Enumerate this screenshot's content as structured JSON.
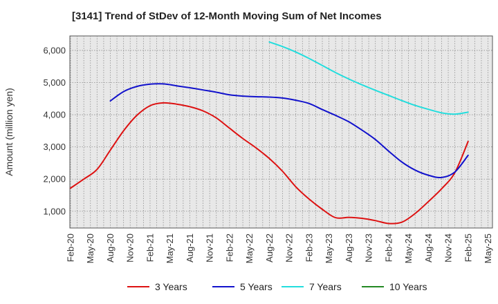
{
  "chart_data": {
    "type": "line",
    "title": "[3141]  Trend of StDev of 12-Month Moving Sum of Net Incomes",
    "ylabel": "Amount (million yen)",
    "xlabel": "",
    "ylim": [
      480,
      6450
    ],
    "yticks": [
      1000,
      2000,
      3000,
      4000,
      5000,
      6000
    ],
    "ytick_labels": [
      "1,000",
      "2,000",
      "3,000",
      "4,000",
      "5,000",
      "6,000"
    ],
    "grid": true,
    "legend_position": "bottom",
    "x_labels": [
      "Feb-20",
      "May-20",
      "Aug-20",
      "Nov-20",
      "Feb-21",
      "May-21",
      "Aug-21",
      "Nov-21",
      "Feb-22",
      "May-22",
      "Aug-22",
      "Nov-22",
      "Feb-23",
      "May-23",
      "Aug-23",
      "Nov-23",
      "Feb-24",
      "May-24",
      "Aug-24",
      "Nov-24",
      "Feb-25",
      "May-25"
    ],
    "series": [
      {
        "name": "3 Years",
        "color": "#dd1111",
        "points": [
          [
            "Feb-20",
            1720
          ],
          [
            "Apr-20",
            2000
          ],
          [
            "Jun-20",
            2300
          ],
          [
            "Aug-20",
            2900
          ],
          [
            "Oct-20",
            3500
          ],
          [
            "Dec-20",
            3980
          ],
          [
            "Feb-21",
            4280
          ],
          [
            "Apr-21",
            4370
          ],
          [
            "Jun-21",
            4330
          ],
          [
            "Aug-21",
            4250
          ],
          [
            "Oct-21",
            4120
          ],
          [
            "Dec-21",
            3900
          ],
          [
            "Feb-22",
            3580
          ],
          [
            "Apr-22",
            3260
          ],
          [
            "Jun-22",
            2970
          ],
          [
            "Aug-22",
            2640
          ],
          [
            "Oct-22",
            2240
          ],
          [
            "Dec-22",
            1760
          ],
          [
            "Feb-23",
            1380
          ],
          [
            "Apr-23",
            1060
          ],
          [
            "Jun-23",
            800
          ],
          [
            "Aug-23",
            810
          ],
          [
            "Oct-23",
            780
          ],
          [
            "Dec-23",
            710
          ],
          [
            "Feb-24",
            620
          ],
          [
            "Apr-24",
            660
          ],
          [
            "Jun-24",
            930
          ],
          [
            "Aug-24",
            1300
          ],
          [
            "Oct-24",
            1700
          ],
          [
            "Dec-24",
            2200
          ],
          [
            "Feb-25",
            3170
          ]
        ]
      },
      {
        "name": "5 Years",
        "color": "#1111cc",
        "points": [
          [
            "Aug-20",
            4430
          ],
          [
            "Oct-20",
            4720
          ],
          [
            "Dec-20",
            4880
          ],
          [
            "Feb-21",
            4950
          ],
          [
            "Apr-21",
            4960
          ],
          [
            "Jun-21",
            4900
          ],
          [
            "Aug-21",
            4840
          ],
          [
            "Oct-21",
            4770
          ],
          [
            "Dec-21",
            4700
          ],
          [
            "Feb-22",
            4620
          ],
          [
            "Apr-22",
            4580
          ],
          [
            "Jun-22",
            4560
          ],
          [
            "Aug-22",
            4550
          ],
          [
            "Oct-22",
            4520
          ],
          [
            "Dec-22",
            4450
          ],
          [
            "Feb-23",
            4350
          ],
          [
            "Apr-23",
            4160
          ],
          [
            "Jun-23",
            3980
          ],
          [
            "Aug-23",
            3780
          ],
          [
            "Oct-23",
            3520
          ],
          [
            "Dec-23",
            3230
          ],
          [
            "Feb-24",
            2870
          ],
          [
            "Apr-24",
            2530
          ],
          [
            "Jun-24",
            2280
          ],
          [
            "Aug-24",
            2120
          ],
          [
            "Oct-24",
            2050
          ],
          [
            "Dec-24",
            2220
          ],
          [
            "Feb-25",
            2740
          ]
        ]
      },
      {
        "name": "7 Years",
        "color": "#22dddd",
        "points": [
          [
            "Aug-22",
            6260
          ],
          [
            "Oct-22",
            6120
          ],
          [
            "Dec-22",
            5950
          ],
          [
            "Feb-23",
            5750
          ],
          [
            "Apr-23",
            5530
          ],
          [
            "Jun-23",
            5310
          ],
          [
            "Aug-23",
            5110
          ],
          [
            "Oct-23",
            4930
          ],
          [
            "Dec-23",
            4760
          ],
          [
            "Feb-24",
            4600
          ],
          [
            "Apr-24",
            4440
          ],
          [
            "Jun-24",
            4290
          ],
          [
            "Aug-24",
            4170
          ],
          [
            "Oct-24",
            4060
          ],
          [
            "Dec-24",
            4020
          ],
          [
            "Feb-25",
            4080
          ]
        ]
      },
      {
        "name": "10 Years",
        "color": "#228822",
        "points": []
      }
    ]
  }
}
